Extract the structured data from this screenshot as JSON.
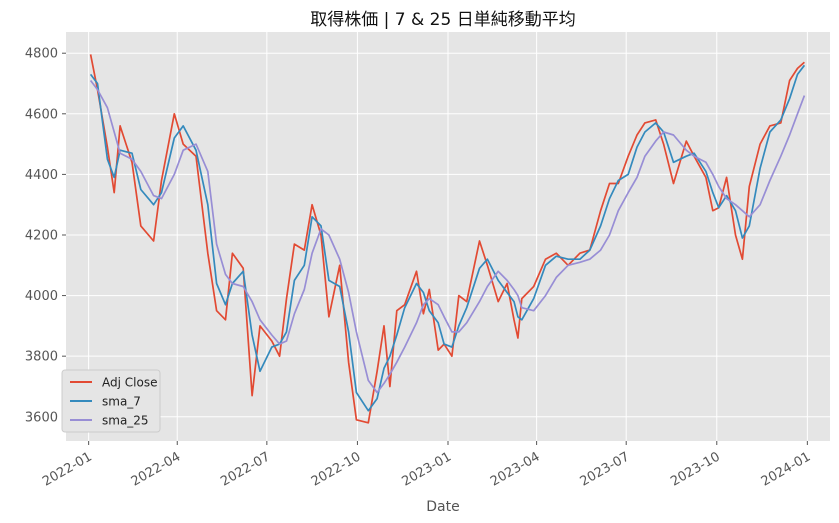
{
  "chart_data": {
    "type": "line",
    "title": "取得株価 | 7 & 25 日単純移動平均",
    "xlabel": "Date",
    "ylabel": "",
    "xlim": [
      "2021-12-09",
      "2024-01-24"
    ],
    "ylim": [
      3520,
      4870
    ],
    "x_ticks": [
      "2022-01",
      "2022-04",
      "2022-07",
      "2022-10",
      "2023-01",
      "2023-04",
      "2023-07",
      "2023-10",
      "2024-01"
    ],
    "y_ticks": [
      3600,
      3800,
      4000,
      4200,
      4400,
      4600,
      4800
    ],
    "grid": true,
    "legend_position": "lower-left",
    "x_points": [
      "2022-01-03",
      "2022-01-10",
      "2022-01-20",
      "2022-01-27",
      "2022-02-02",
      "2022-02-14",
      "2022-02-23",
      "2022-03-08",
      "2022-03-16",
      "2022-03-29",
      "2022-04-07",
      "2022-04-20",
      "2022-05-02",
      "2022-05-11",
      "2022-05-20",
      "2022-05-27",
      "2022-06-07",
      "2022-06-16",
      "2022-06-24",
      "2022-07-06",
      "2022-07-14",
      "2022-07-21",
      "2022-07-29",
      "2022-08-08",
      "2022-08-16",
      "2022-08-25",
      "2022-09-02",
      "2022-09-13",
      "2022-09-22",
      "2022-09-30",
      "2022-10-12",
      "2022-10-21",
      "2022-10-28",
      "2022-11-03",
      "2022-11-10",
      "2022-11-18",
      "2022-11-30",
      "2022-12-07",
      "2022-12-13",
      "2022-12-22",
      "2022-12-28",
      "2023-01-05",
      "2023-01-12",
      "2023-01-20",
      "2023-02-02",
      "2023-02-10",
      "2023-02-21",
      "2023-03-02",
      "2023-03-09",
      "2023-03-13",
      "2023-03-17",
      "2023-03-29",
      "2023-04-10",
      "2023-04-21",
      "2023-05-03",
      "2023-05-15",
      "2023-05-25",
      "2023-06-05",
      "2023-06-14",
      "2023-06-23",
      "2023-07-03",
      "2023-07-12",
      "2023-07-20",
      "2023-07-31",
      "2023-08-08",
      "2023-08-18",
      "2023-08-31",
      "2023-09-08",
      "2023-09-20",
      "2023-09-27",
      "2023-10-03",
      "2023-10-11",
      "2023-10-20",
      "2023-10-27",
      "2023-11-03",
      "2023-11-14",
      "2023-11-24",
      "2023-12-05",
      "2023-12-14",
      "2023-12-22",
      "2023-12-29"
    ],
    "series": [
      {
        "name": "Adj Close",
        "color": "#e24a33",
        "values": [
          4796,
          4680,
          4490,
          4340,
          4560,
          4440,
          4230,
          4180,
          4380,
          4600,
          4500,
          4460,
          4140,
          3950,
          3920,
          4140,
          4090,
          3670,
          3900,
          3850,
          3800,
          3990,
          4170,
          4150,
          4300,
          4200,
          3930,
          4100,
          3780,
          3590,
          3580,
          3750,
          3900,
          3700,
          3950,
          3970,
          4080,
          3940,
          4020,
          3820,
          3840,
          3800,
          4000,
          3980,
          4180,
          4100,
          3980,
          4040,
          3920,
          3860,
          3990,
          4030,
          4120,
          4140,
          4100,
          4140,
          4150,
          4280,
          4370,
          4370,
          4460,
          4530,
          4570,
          4580,
          4500,
          4370,
          4510,
          4460,
          4390,
          4280,
          4290,
          4390,
          4200,
          4120,
          4360,
          4500,
          4560,
          4570,
          4710,
          4750,
          4770
        ]
      },
      {
        "name": "sma_7",
        "color": "#348abd",
        "values": [
          4730,
          4700,
          4450,
          4390,
          4480,
          4470,
          4350,
          4300,
          4340,
          4520,
          4560,
          4480,
          4300,
          4040,
          3970,
          4040,
          4080,
          3870,
          3750,
          3830,
          3840,
          3880,
          4050,
          4100,
          4260,
          4230,
          4050,
          4030,
          3880,
          3680,
          3620,
          3660,
          3760,
          3800,
          3870,
          3960,
          4040,
          4010,
          3950,
          3910,
          3840,
          3830,
          3900,
          3960,
          4090,
          4120,
          4050,
          4010,
          3980,
          3930,
          3920,
          3990,
          4100,
          4130,
          4120,
          4120,
          4150,
          4230,
          4320,
          4380,
          4400,
          4490,
          4540,
          4570,
          4540,
          4440,
          4460,
          4470,
          4410,
          4340,
          4290,
          4330,
          4280,
          4190,
          4230,
          4420,
          4540,
          4580,
          4650,
          4730,
          4760
        ]
      },
      {
        "name": "sma_25",
        "color": "#988ed5",
        "values": [
          4710,
          4680,
          4620,
          4540,
          4470,
          4450,
          4410,
          4330,
          4320,
          4400,
          4480,
          4500,
          4410,
          4170,
          4070,
          4040,
          4030,
          3980,
          3920,
          3870,
          3840,
          3850,
          3940,
          4020,
          4140,
          4220,
          4200,
          4120,
          4010,
          3880,
          3720,
          3680,
          3710,
          3740,
          3780,
          3830,
          3910,
          3970,
          3990,
          3970,
          3930,
          3880,
          3880,
          3910,
          3980,
          4030,
          4080,
          4050,
          4020,
          4000,
          3960,
          3950,
          4000,
          4060,
          4100,
          4110,
          4120,
          4150,
          4200,
          4280,
          4340,
          4390,
          4460,
          4510,
          4540,
          4530,
          4480,
          4460,
          4440,
          4400,
          4360,
          4320,
          4300,
          4280,
          4260,
          4300,
          4380,
          4460,
          4530,
          4600,
          4660
        ]
      }
    ]
  }
}
